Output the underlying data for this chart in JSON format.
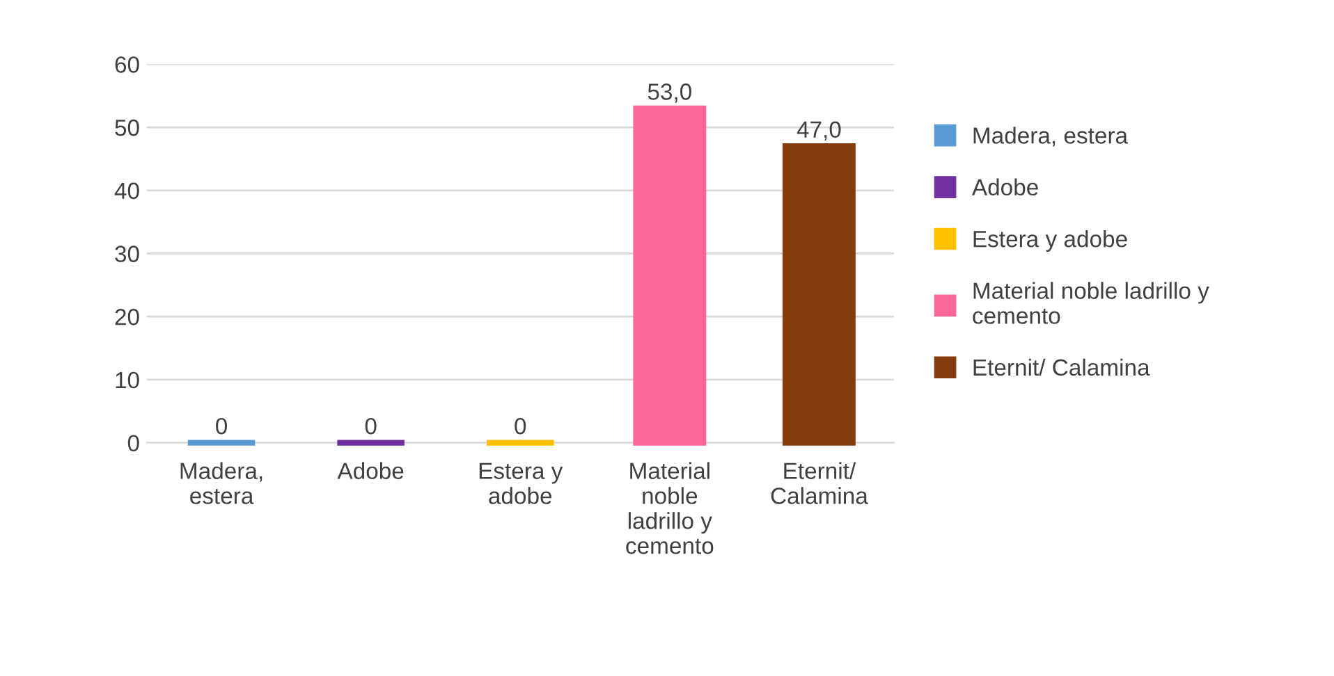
{
  "chart_data": {
    "type": "bar",
    "categories": [
      "Madera, estera",
      "Adobe",
      "Estera y adobe",
      "Material noble ladrillo y cemento",
      "Eternit/ Calamina"
    ],
    "series": [
      {
        "name": "Madera, estera",
        "color": "#5b9bd5",
        "values": [
          0,
          null,
          null,
          null,
          null
        ],
        "value_labels": [
          "0",
          null,
          null,
          null,
          null
        ]
      },
      {
        "name": "Adobe",
        "color": "#7030a0",
        "values": [
          null,
          0,
          null,
          null,
          null
        ],
        "value_labels": [
          null,
          "0",
          null,
          null,
          null
        ]
      },
      {
        "name": "Estera y adobe",
        "color": "#ffc000",
        "values": [
          null,
          null,
          0,
          null,
          null
        ],
        "value_labels": [
          null,
          null,
          "0",
          null,
          null
        ]
      },
      {
        "name": "Material noble ladrillo y cemento",
        "color": "#ff6699",
        "values": [
          null,
          null,
          null,
          53.0,
          null
        ],
        "value_labels": [
          null,
          null,
          null,
          "53,0",
          null
        ]
      },
      {
        "name": "Eternit/ Calamina",
        "color": "#843c0c",
        "values": [
          null,
          null,
          null,
          null,
          47.0
        ],
        "value_labels": [
          null,
          null,
          null,
          null,
          "47,0"
        ]
      }
    ],
    "ylim": [
      0,
      60
    ],
    "yticks": [
      0,
      10,
      20,
      30,
      40,
      50,
      60
    ],
    "grid": "y",
    "legend": "right"
  }
}
